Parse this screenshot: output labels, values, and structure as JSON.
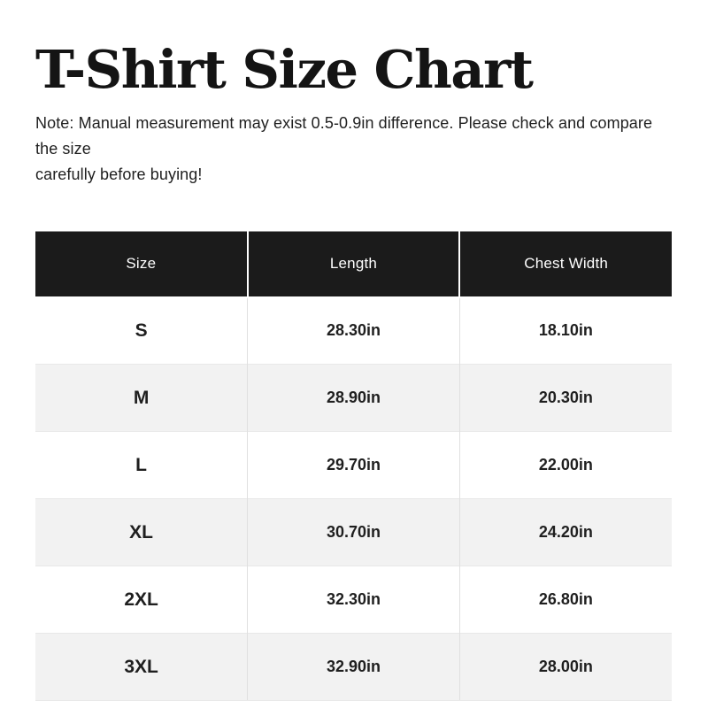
{
  "title": "T-Shirt Size Chart",
  "note_lines": [
    "Note: Manual measurement may exist 0.5-0.9in difference. Please check and compare the size",
    "carefully before buying!"
  ],
  "table": {
    "headers": [
      "Size",
      "Length",
      "Chest Width"
    ],
    "rows": [
      {
        "size": "S",
        "length": "28.30in",
        "chest_width": "18.10in"
      },
      {
        "size": "M",
        "length": "28.90in",
        "chest_width": "20.30in"
      },
      {
        "size": "L",
        "length": "29.70in",
        "chest_width": "22.00in"
      },
      {
        "size": "XL",
        "length": "30.70in",
        "chest_width": "24.20in"
      },
      {
        "size": "2XL",
        "length": "32.30in",
        "chest_width": "26.80in"
      },
      {
        "size": "3XL",
        "length": "32.90in",
        "chest_width": "28.00in"
      }
    ]
  },
  "colors": {
    "header_bg": "#1b1b1b",
    "header_text": "#ffffff",
    "row_odd_bg": "#ffffff",
    "row_even_bg": "#f2f2f2",
    "grid_line": "#e0e0e0",
    "title_color": "#141414",
    "body_text": "#1f1f1f"
  }
}
